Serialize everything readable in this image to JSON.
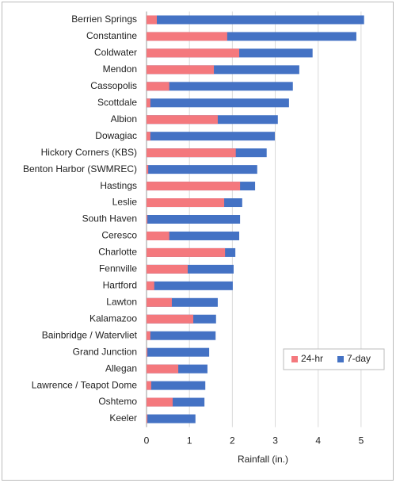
{
  "chart_data": {
    "type": "bar",
    "orientation": "horizontal",
    "overlay": true,
    "x_label": "Rainfall (in.)",
    "categories": [
      "Berrien Springs",
      "Constantine",
      "Coldwater",
      "Mendon",
      "Cassopolis",
      "Scottdale",
      "Albion",
      "Dowagiac",
      "Hickory Corners (KBS)",
      "Benton Harbor (SWMREC)",
      "Hastings",
      "Leslie",
      "South Haven",
      "Ceresco",
      "Charlotte",
      "Fennville",
      "Hartford",
      "Lawton",
      "Kalamazoo",
      "Bainbridge / Watervliet",
      "Grand Junction",
      "Allegan",
      "Lawrence / Teapot Dome",
      "Oshtemo",
      "Keeler"
    ],
    "series": [
      {
        "name": "24-hr",
        "color": "#f4787d",
        "values": [
          0.24,
          1.88,
          2.16,
          1.57,
          0.53,
          0.09,
          1.66,
          0.09,
          2.08,
          0.04,
          2.18,
          1.81,
          0.02,
          0.53,
          1.83,
          0.96,
          0.18,
          0.59,
          1.09,
          0.09,
          0.02,
          0.74,
          0.11,
          0.61,
          0.02
        ]
      },
      {
        "name": "7-day",
        "color": "#4472c4",
        "values": [
          5.07,
          4.89,
          3.87,
          3.56,
          3.41,
          3.32,
          3.06,
          2.99,
          2.8,
          2.58,
          2.53,
          2.23,
          2.18,
          2.16,
          2.07,
          2.03,
          2.01,
          1.66,
          1.62,
          1.61,
          1.46,
          1.42,
          1.37,
          1.35,
          1.14
        ]
      }
    ],
    "xlim": [
      0,
      5.5
    ],
    "xticks": [
      0,
      1,
      2,
      3,
      4,
      5
    ],
    "grid": true,
    "legend": "lower right"
  }
}
